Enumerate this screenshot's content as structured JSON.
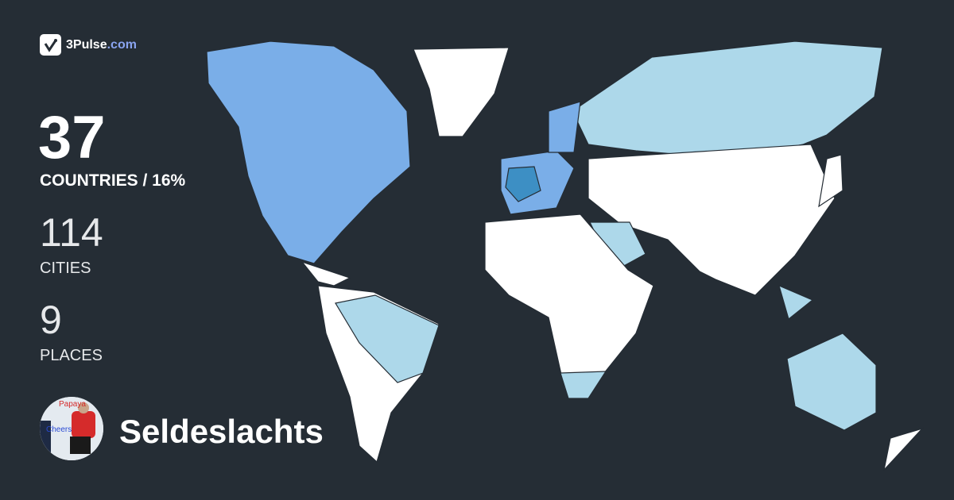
{
  "brand": {
    "name": "3Pulse",
    "domain_suffix": ".com",
    "icon": "check-pulse-logo-icon"
  },
  "stats": {
    "countries": {
      "value": "37",
      "label": "COUNTRIES / 16%"
    },
    "cities": {
      "value": "114",
      "label": "CITIES"
    },
    "places": {
      "value": "9",
      "label": "PLACES"
    }
  },
  "user": {
    "name": "Seldeslachts",
    "avatar": "user-avatar-photo",
    "avatar_photo_text": [
      "Papaya",
      "Cheers"
    ]
  },
  "map": {
    "colors": {
      "background": "#252d35",
      "unvisited": "#ffffff",
      "visited_light": "#add8ea",
      "visited_medium": "#7aaee8",
      "visited_dark": "#3d8fc4"
    }
  }
}
